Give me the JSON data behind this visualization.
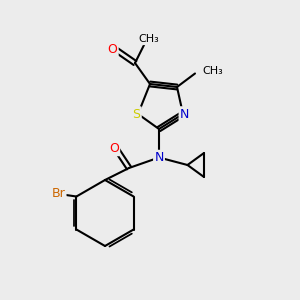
{
  "bg_color": "#ececec",
  "bond_color": "#000000",
  "bond_lw": 1.5,
  "atom_colors": {
    "N": "#0000cc",
    "O": "#ff0000",
    "S": "#cccc00",
    "Br": "#cc6600",
    "C": "#000000"
  },
  "font_size": 9,
  "font_size_small": 8
}
